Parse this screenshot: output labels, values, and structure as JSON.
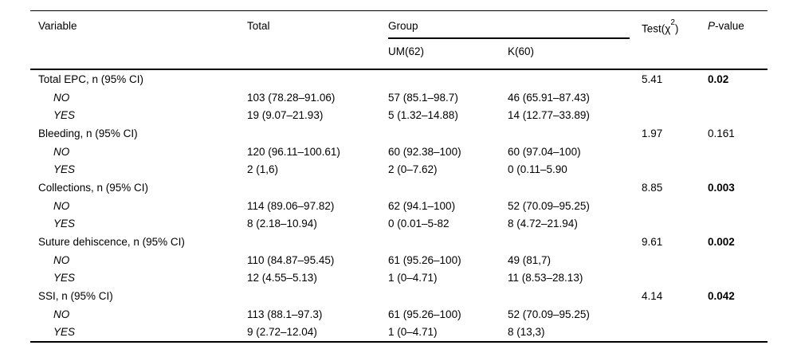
{
  "colors": {
    "background": "#ffffff",
    "text": "#000000",
    "rule": "#000000"
  },
  "table": {
    "header": {
      "variable": "Variable",
      "total": "Total",
      "group": "Group",
      "subgroups": [
        "UM(62)",
        "K(60)"
      ],
      "test_prefix": "Test(χ",
      "test_sup": "2",
      "test_close": ")",
      "pvalue_italic": "P",
      "pvalue_rest": "-value"
    },
    "rows": [
      {
        "variable": "Total EPC, n (95% CI)",
        "indent": false,
        "total": "",
        "um": "",
        "k": "",
        "test": "5.41",
        "p": "0.02",
        "p_bold": true
      },
      {
        "variable": "NO",
        "indent": true,
        "total": "103 (78.28–91.06)",
        "um": "57 (85.1–98.7)",
        "k": "46 (65.91–87.43)",
        "test": "",
        "p": "",
        "p_bold": false
      },
      {
        "variable": "YES",
        "indent": true,
        "total": "19 (9.07–21.93)",
        "um": "5 (1.32–14.88)",
        "k": "14 (12.77–33.89)",
        "test": "",
        "p": "",
        "p_bold": false
      },
      {
        "variable": "Bleeding, n (95% CI)",
        "indent": false,
        "total": "",
        "um": "",
        "k": "",
        "test": "1.97",
        "p": "0.161",
        "p_bold": false
      },
      {
        "variable": "NO",
        "indent": true,
        "total": "120 (96.11–100.61)",
        "um": "60 (92.38–100)",
        "k": "60 (97.04–100)",
        "test": "",
        "p": "",
        "p_bold": false
      },
      {
        "variable": "YES",
        "indent": true,
        "total": "2 (1,6)",
        "um": "2 (0–7.62)",
        "k": "0 (0.11–5.90",
        "test": "",
        "p": "",
        "p_bold": false
      },
      {
        "variable": "Collections, n (95% CI)",
        "indent": false,
        "total": "",
        "um": "",
        "k": "",
        "test": "8.85",
        "p": "0.003",
        "p_bold": true
      },
      {
        "variable": "NO",
        "indent": true,
        "total": "114 (89.06–97.82)",
        "um": "62 (94.1–100)",
        "k": "52 (70.09–95.25)",
        "test": "",
        "p": "",
        "p_bold": false
      },
      {
        "variable": "YES",
        "indent": true,
        "total": "8 (2.18–10.94)",
        "um": "0 (0.01–5-82",
        "k": "8 (4.72–21.94)",
        "test": "",
        "p": "",
        "p_bold": false
      },
      {
        "variable": "Suture dehiscence, n (95% CI)",
        "indent": false,
        "total": "",
        "um": "",
        "k": "",
        "test": "9.61",
        "p": "0.002",
        "p_bold": true
      },
      {
        "variable": "NO",
        "indent": true,
        "total": "110 (84.87–95.45)",
        "um": "61 (95.26–100)",
        "k": "49 (81,7)",
        "test": "",
        "p": "",
        "p_bold": false
      },
      {
        "variable": "YES",
        "indent": true,
        "total": "12 (4.55–5.13)",
        "um": "1 (0–4.71)",
        "k": "11 (8.53–28.13)",
        "test": "",
        "p": "",
        "p_bold": false
      },
      {
        "variable": "SSI, n (95% CI)",
        "indent": false,
        "total": "",
        "um": "",
        "k": "",
        "test": "4.14",
        "p": "0.042",
        "p_bold": true
      },
      {
        "variable": "NO",
        "indent": true,
        "total": "113 (88.1–97.3)",
        "um": "61 (95.26–100)",
        "k": "52 (70.09–95.25)",
        "test": "",
        "p": "",
        "p_bold": false
      },
      {
        "variable": "YES",
        "indent": true,
        "total": "9 (2.72–12.04)",
        "um": "1 (0–4.71)",
        "k": "8 (13,3)",
        "test": "",
        "p": "",
        "p_bold": false
      }
    ]
  }
}
